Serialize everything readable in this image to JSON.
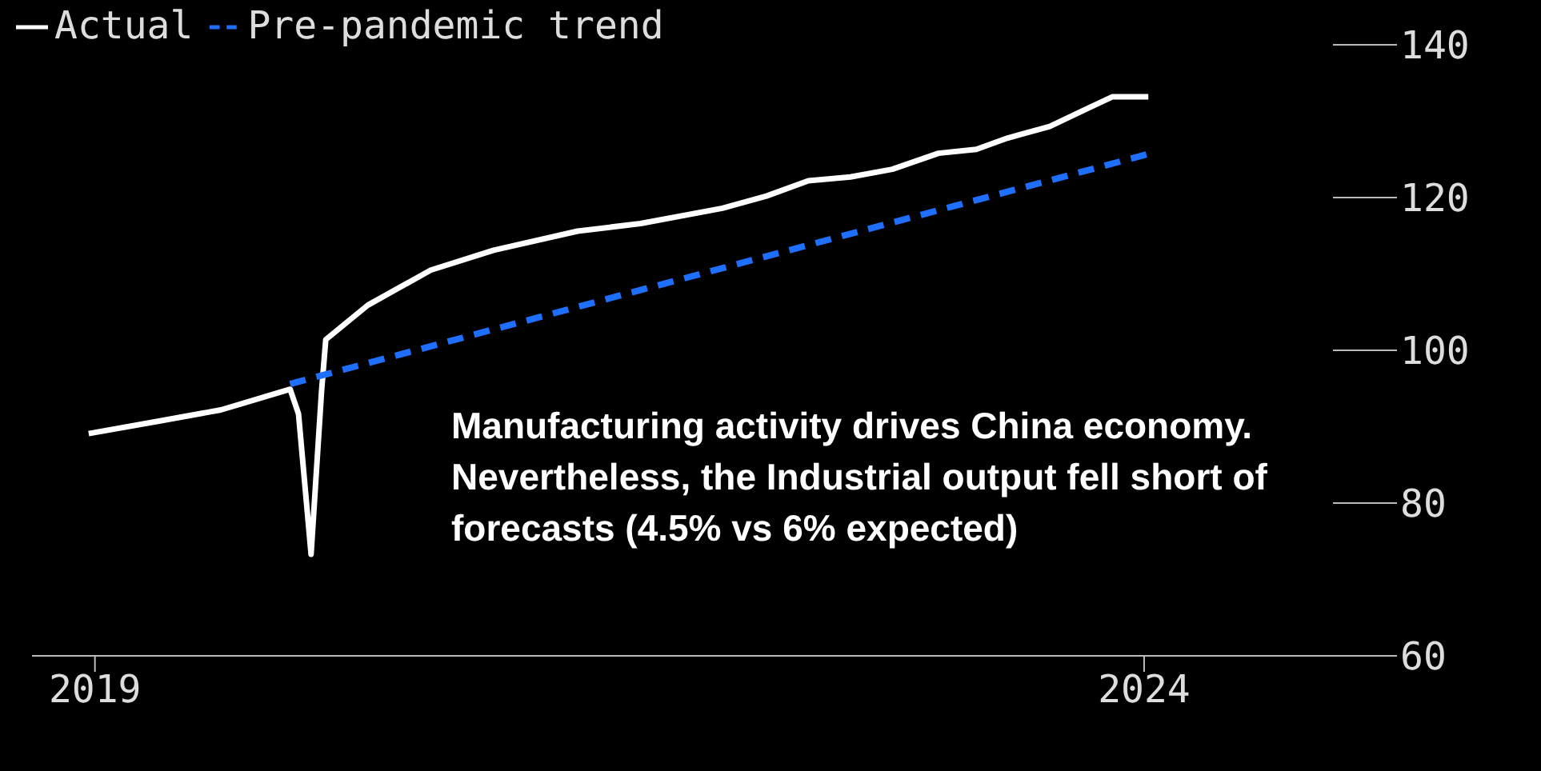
{
  "chart_data": {
    "type": "line",
    "x": [
      2018.97,
      2019.3,
      2019.6,
      2019.93,
      2019.97,
      2020.03,
      2020.08,
      2020.1,
      2020.3,
      2020.6,
      2020.9,
      2021.3,
      2021.6,
      2021.99,
      2022.2,
      2022.4,
      2022.6,
      2022.8,
      2023.02,
      2023.2,
      2023.35,
      2023.55,
      2023.71,
      2023.85,
      2024.02
    ],
    "series": [
      {
        "name": "Actual",
        "color": "#ffffff",
        "line_style": "solid",
        "values": [
          89.1,
          90.7,
          92.2,
          94.9,
          91.7,
          73.3,
          94.7,
          101.4,
          105.9,
          110.5,
          113.1,
          115.6,
          116.6,
          118.6,
          120.2,
          122.2,
          122.7,
          123.7,
          125.8,
          126.3,
          127.8,
          129.3,
          131.4,
          133.2,
          133.2
        ]
      },
      {
        "name": "Pre-pandemic trend",
        "color": "#1f6fff",
        "line_style": "dashed",
        "x": [
          2019.93,
          2024.02
        ],
        "values": [
          95.6,
          125.7
        ]
      }
    ],
    "xlim": [
      2018.7,
      2024.9
    ],
    "xticks": [
      2019,
      2024
    ],
    "ylim": [
      60,
      140
    ],
    "yticks": [
      60,
      80,
      100,
      120,
      140
    ],
    "grid": false,
    "legend": "top left",
    "marker": "none",
    "annotations": [
      "Manufacturing activity drives China economy. Nevertheless, the Industrial output fell short of forecasts (4.5% vs 6% expected)"
    ]
  }
}
